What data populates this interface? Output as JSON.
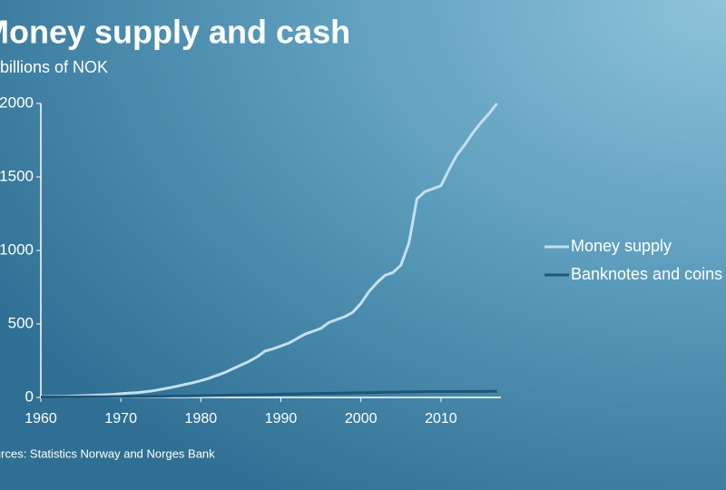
{
  "chart_data": {
    "type": "line",
    "title": "Money supply and cash",
    "subtitle": "In billions of NOK",
    "source": "Sources: Statistics Norway and Norges Bank",
    "x": [
      1960,
      1961,
      1962,
      1963,
      1964,
      1965,
      1966,
      1967,
      1968,
      1969,
      1970,
      1971,
      1972,
      1973,
      1974,
      1975,
      1976,
      1977,
      1978,
      1979,
      1980,
      1981,
      1982,
      1983,
      1984,
      1985,
      1986,
      1987,
      1988,
      1989,
      1990,
      1991,
      1992,
      1993,
      1994,
      1995,
      1996,
      1997,
      1998,
      1999,
      2000,
      2001,
      2002,
      2003,
      2004,
      2005,
      2006,
      2007,
      2008,
      2009,
      2010,
      2011,
      2012,
      2013,
      2014,
      2015,
      2016,
      2017
    ],
    "series": [
      {
        "name": "Money supply",
        "color": "#c5e0f0",
        "values": [
          5,
          6,
          7,
          8,
          10,
          12,
          14,
          16,
          18,
          21,
          25,
          29,
          33,
          38,
          45,
          55,
          65,
          76,
          88,
          100,
          115,
          130,
          150,
          170,
          195,
          220,
          245,
          275,
          315,
          330,
          350,
          370,
          400,
          430,
          450,
          470,
          510,
          530,
          550,
          580,
          640,
          720,
          780,
          830,
          850,
          900,
          1050,
          1350,
          1400,
          1420,
          1440,
          1550,
          1650,
          1720,
          1800,
          1870,
          1930,
          2000
        ]
      },
      {
        "name": "Banknotes and coins",
        "color": "#1f5577",
        "values": [
          3,
          3,
          3,
          4,
          4,
          4,
          5,
          5,
          5,
          6,
          6,
          6,
          7,
          7,
          8,
          8,
          9,
          10,
          10,
          11,
          12,
          13,
          14,
          15,
          16,
          17,
          18,
          19,
          20,
          21,
          22,
          23,
          24,
          25,
          26,
          27,
          28,
          29,
          30,
          31,
          32,
          33,
          34,
          35,
          36,
          37,
          38,
          39,
          40,
          40,
          40,
          40,
          40,
          41,
          41,
          41,
          42,
          42
        ]
      }
    ],
    "xlim": [
      1960,
      2017.5
    ],
    "ylim": [
      0,
      2000
    ],
    "xticks": [
      1960,
      1970,
      1980,
      1990,
      2000,
      2010
    ],
    "yticks": [
      0,
      500,
      1000,
      1500,
      2000
    ]
  }
}
